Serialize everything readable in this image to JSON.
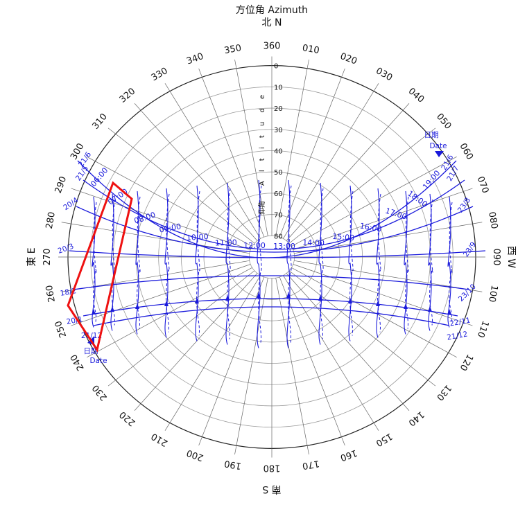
{
  "title": "方位角 Azimuth",
  "north_label": "北 N",
  "south_label": "南 S",
  "east_label": "東 E",
  "west_label": "西 W",
  "altitude_caption": "Altitude",
  "altitude_caption_cjk": "仰角",
  "date_caption_cjk": "日期",
  "date_caption": "Date",
  "azimuth_ticks": [
    "360",
    "010",
    "020",
    "030",
    "040",
    "050",
    "060",
    "070",
    "080",
    "090",
    "100",
    "110",
    "120",
    "130",
    "140",
    "150",
    "160",
    "170",
    "180",
    "190",
    "200",
    "210",
    "220",
    "230",
    "240",
    "250",
    "260",
    "270",
    "280",
    "290",
    "300",
    "310",
    "320",
    "330",
    "340",
    "350"
  ],
  "altitude_ticks": [
    "0",
    "10",
    "20",
    "30",
    "40",
    "50",
    "60",
    "70",
    "80"
  ],
  "hour_labels": [
    "06:00",
    "07:00",
    "08:00",
    "09:00",
    "10:00",
    "11:00",
    "12:00",
    "13:00",
    "14:00",
    "15:00",
    "16:00",
    "17:00",
    "18:00",
    "19:00"
  ],
  "date_labels_left": [
    "21/6",
    "21/5",
    "20/4",
    "20/3",
    "18/2",
    "20/1",
    "21/12"
  ],
  "date_labels_right": [
    "21/6",
    "21/7",
    "23/8",
    "23/9",
    "23/10",
    "22/11",
    "21/12"
  ],
  "colors": {
    "sunpath": "#1a1adb",
    "grid": "#555555",
    "highlight": "#ee1111",
    "text": "#111111"
  }
}
